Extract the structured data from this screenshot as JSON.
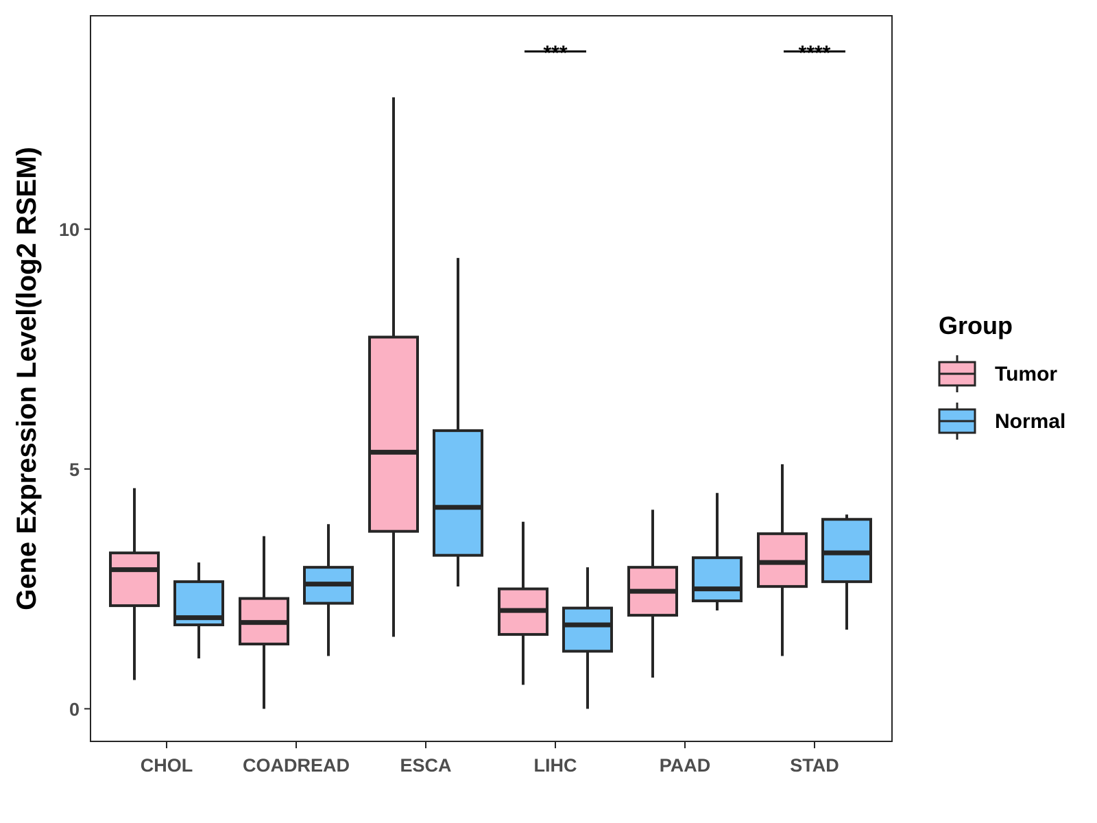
{
  "chart_data": {
    "type": "boxplot",
    "title": "",
    "xlabel": "",
    "ylabel": "Gene Expression Level(log2 RSEM)",
    "ylim": [
      -0.68,
      14.45
    ],
    "yticks": [
      0,
      5,
      10
    ],
    "grid": false,
    "categories": [
      "CHOL",
      "COADREAD",
      "ESCA",
      "LIHC",
      "PAAD",
      "STAD"
    ],
    "legend": {
      "title": "Group",
      "placement": "right"
    },
    "series": [
      {
        "name": "Tumor",
        "color": "#FBB1C3",
        "boxes": [
          {
            "min": 0.6,
            "q1": 2.15,
            "median": 2.9,
            "q3": 3.25,
            "max": 4.6
          },
          {
            "min": 0.0,
            "q1": 1.35,
            "median": 1.8,
            "q3": 2.3,
            "max": 3.6
          },
          {
            "min": 1.5,
            "q1": 3.7,
            "median": 5.35,
            "q3": 7.75,
            "max": 12.75
          },
          {
            "min": 0.5,
            "q1": 1.55,
            "median": 2.05,
            "q3": 2.5,
            "max": 3.9
          },
          {
            "min": 0.65,
            "q1": 1.95,
            "median": 2.45,
            "q3": 2.95,
            "max": 4.15
          },
          {
            "min": 1.1,
            "q1": 2.55,
            "median": 3.05,
            "q3": 3.65,
            "max": 5.1
          }
        ]
      },
      {
        "name": "Normal",
        "color": "#74C3F8",
        "boxes": [
          {
            "min": 1.05,
            "q1": 1.75,
            "median": 1.9,
            "q3": 2.65,
            "max": 3.05
          },
          {
            "min": 1.1,
            "q1": 2.2,
            "median": 2.6,
            "q3": 2.95,
            "max": 3.85
          },
          {
            "min": 2.55,
            "q1": 3.2,
            "median": 4.2,
            "q3": 5.8,
            "max": 9.4
          },
          {
            "min": 0.0,
            "q1": 1.2,
            "median": 1.75,
            "q3": 2.1,
            "max": 2.95
          },
          {
            "min": 2.05,
            "q1": 2.25,
            "median": 2.5,
            "q3": 3.15,
            "max": 4.5
          },
          {
            "min": 1.65,
            "q1": 2.65,
            "median": 3.25,
            "q3": 3.95,
            "max": 4.05
          }
        ]
      }
    ],
    "significance": [
      {
        "category": "LIHC",
        "label": "***"
      },
      {
        "category": "STAD",
        "label": "****"
      }
    ]
  },
  "colors": {
    "outline": "#262626",
    "panel_border": "#262626",
    "tick_text": "#4d4d4d"
  }
}
